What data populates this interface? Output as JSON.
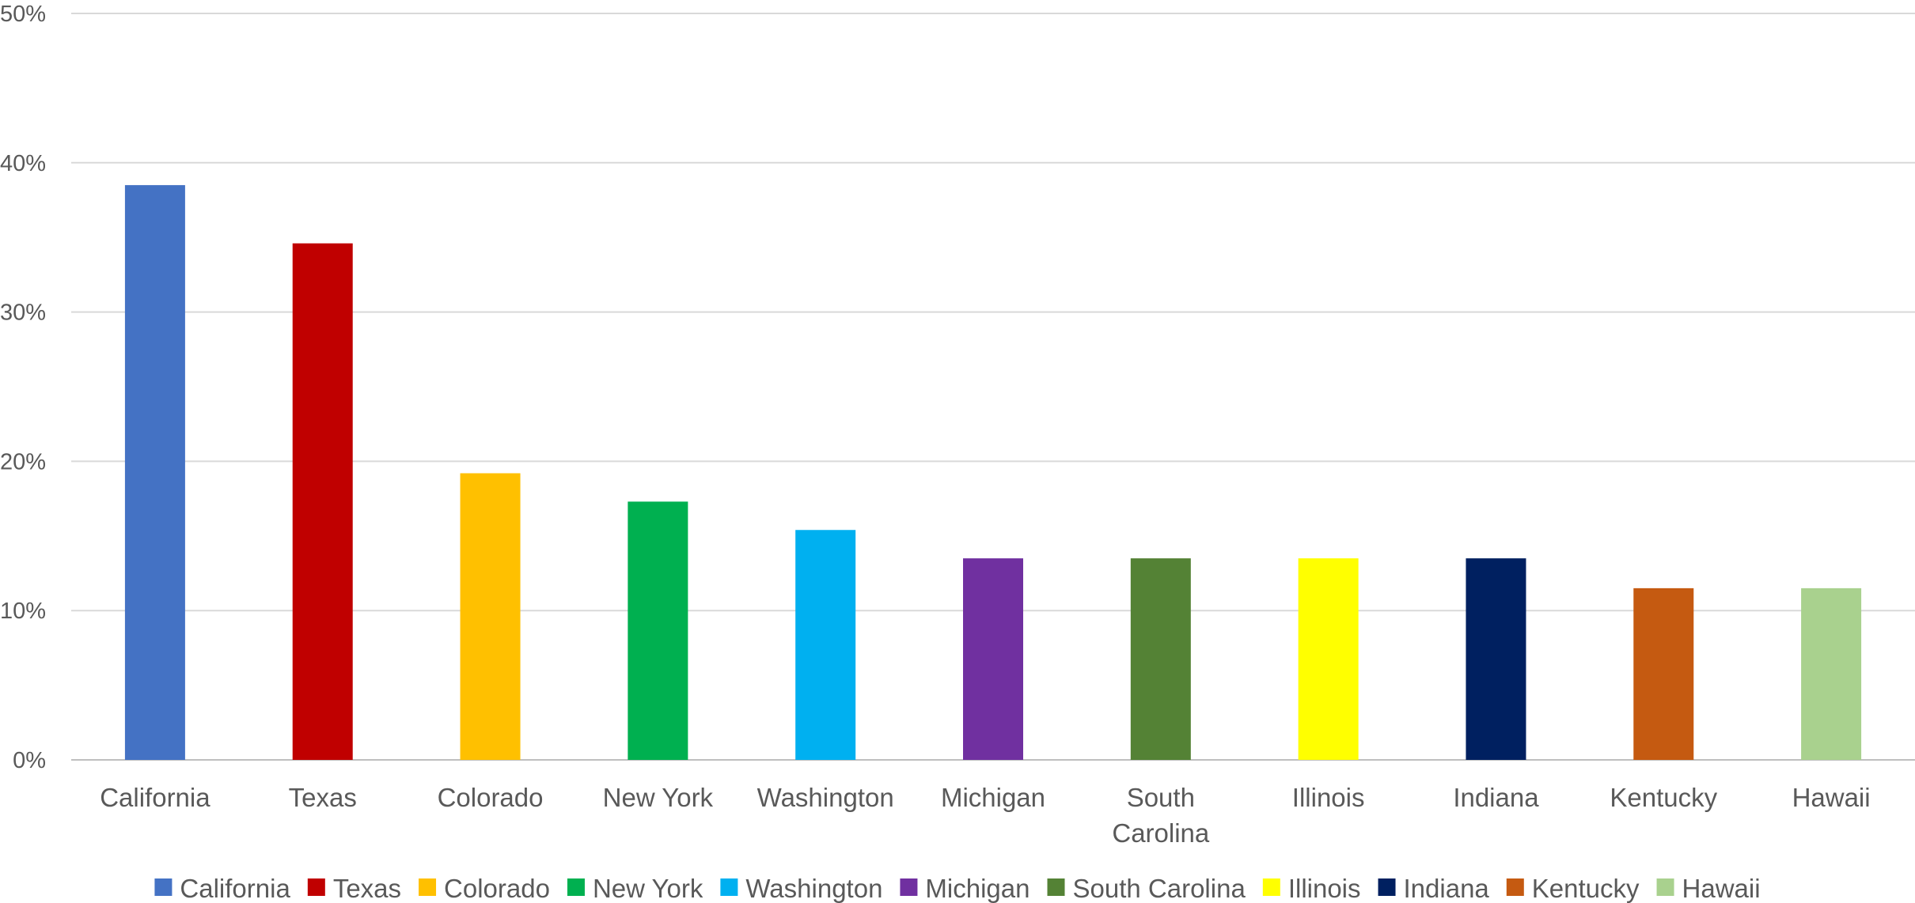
{
  "chart_data": {
    "type": "bar",
    "categories": [
      "California",
      "Texas",
      "Colorado",
      "New York",
      "Washington",
      "Michigan",
      "South Carolina",
      "Illinois",
      "Indiana",
      "Kentucky",
      "Hawaii"
    ],
    "category_label_lines": [
      [
        "California"
      ],
      [
        "Texas"
      ],
      [
        "Colorado"
      ],
      [
        "New York"
      ],
      [
        "Washington"
      ],
      [
        "Michigan"
      ],
      [
        "South",
        "Carolina"
      ],
      [
        "Illinois"
      ],
      [
        "Indiana"
      ],
      [
        "Kentucky"
      ],
      [
        "Hawaii"
      ]
    ],
    "values": [
      38.5,
      34.6,
      19.2,
      17.3,
      15.4,
      13.5,
      13.5,
      13.5,
      13.5,
      11.5,
      11.5
    ],
    "colors": [
      "#4472C4",
      "#C00000",
      "#FFC000",
      "#00B050",
      "#00B0F0",
      "#7030A0",
      "#548235",
      "#FFFF00",
      "#002060",
      "#C55A11",
      "#A9D18E"
    ],
    "ylim": [
      0,
      50
    ],
    "yticks": [
      0,
      10,
      20,
      30,
      40,
      50
    ],
    "ytick_labels": [
      "0%",
      "10%",
      "20%",
      "30%",
      "40%",
      "50%"
    ],
    "grid": true,
    "legend": "bottom",
    "title": "",
    "xlabel": "",
    "ylabel": ""
  }
}
